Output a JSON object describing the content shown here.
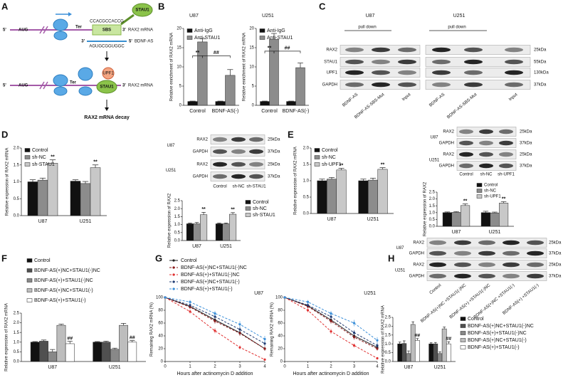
{
  "panel_a": {
    "letter": "A",
    "row1": {
      "five": "5'",
      "start": "AUG",
      "stop": "Ter",
      "sequence": "CCACGCCACCG",
      "three": "3'",
      "mrna": "RAX2 mRNA",
      "site": "SBS",
      "protein": "STAU1"
    },
    "antisense": {
      "three": "3'",
      "sequence": "AGUGCGGUGGC",
      "five": "5'",
      "name": "BDNF-AS"
    },
    "row2": {
      "five": "5'",
      "start": "AUG",
      "stop": "Ter",
      "upf": "UPF1",
      "protein": "STAU1",
      "three": "3'",
      "mrna": "RAX2 mRNA"
    },
    "result": "RAX2 mRNA decay"
  },
  "panel_b": {
    "letter": "B",
    "charts": [
      {
        "type": "bar",
        "title": "U87",
        "ylabel": "Relative enrichment of RAX2 mRNA",
        "categories": [
          "Control",
          "BDNF-AS(-)"
        ],
        "ylim": [
          0,
          20
        ],
        "yticks": [
          0,
          5,
          10,
          15,
          20
        ],
        "legend": "upper left",
        "annotations": [
          "**",
          "##"
        ],
        "series": [
          {
            "name": "Anti-IgG",
            "color": "#111111",
            "values": [
              1,
              1
            ],
            "errors": [
              0.1,
              0.1
            ]
          },
          {
            "name": "Anti-STAU1",
            "color": "#8c8c8c",
            "values": [
              16.5,
              7.8
            ],
            "errors": [
              0.8,
              1.5
            ]
          }
        ]
      },
      {
        "type": "bar",
        "title": "U251",
        "ylabel": "Relative enrichment of RAX2 mRNA",
        "categories": [
          "Control",
          "BDNF-AS(-)"
        ],
        "ylim": [
          0,
          20
        ],
        "yticks": [
          0,
          5,
          10,
          15,
          20
        ],
        "legend": "upper left",
        "annotations": [
          "**",
          "##"
        ],
        "series": [
          {
            "name": "Anti-IgG",
            "color": "#111111",
            "values": [
              1,
              1
            ],
            "errors": [
              0.1,
              0.1
            ]
          },
          {
            "name": "Anti-STAU1",
            "color": "#8c8c8c",
            "values": [
              17.2,
              9.8
            ],
            "errors": [
              1.5,
              1.2
            ]
          }
        ]
      }
    ]
  },
  "panel_c": {
    "letter": "C",
    "cell_lines": [
      "U87",
      "U251"
    ],
    "pull_down": [
      "pull down",
      "pull down"
    ],
    "blot": {
      "rows": [
        {
          "protein": "RAX2",
          "size": "25kDa"
        },
        {
          "protein": "STAU1",
          "size": "55kDa"
        },
        {
          "protein": "UPF1",
          "size": "130kDa"
        },
        {
          "protein": "GAPDH",
          "size": "37kDa"
        }
      ],
      "lanes": [
        "BDNF-AS",
        "BDNF-AS-SBS-Mut",
        "Input",
        "BDNF-AS",
        "BDNF-AS-SBS-Mut",
        "Input"
      ]
    }
  },
  "panel_d": {
    "letter": "D",
    "chart": {
      "type": "bar",
      "ylabel": "Relative expression of RAX2 mRNA",
      "categories": [
        "U87",
        "U251"
      ],
      "ylim": [
        0,
        2
      ],
      "yticks": [
        {
          "value": 0,
          "label": "0.0"
        },
        {
          "value": 0.5,
          "label": "0.5"
        },
        {
          "value": 1,
          "label": "1.0"
        },
        {
          "value": 1.5,
          "label": "1.5"
        },
        {
          "value": 2,
          "label": "2.0"
        }
      ],
      "legend": "upper left",
      "series": [
        {
          "name": "Control",
          "color": "#111111",
          "values": [
            1.0,
            1.02
          ],
          "errors": [
            0.06,
            0.04
          ]
        },
        {
          "name": "sh-NC",
          "color": "#8c8c8c",
          "values": [
            1.05,
            0.95
          ],
          "errors": [
            0.06,
            0.06
          ]
        },
        {
          "name": "sh-STAU1",
          "color": "#c8c8c8",
          "values": [
            1.55,
            1.42
          ],
          "errors": [
            0.1,
            0.08
          ],
          "significance": [
            "**",
            "**"
          ]
        }
      ]
    },
    "blot": {
      "rows": [
        {
          "cell": "U87",
          "protein": "RAX2",
          "size": "25kDa"
        },
        {
          "protein": "GAPDH",
          "size": "37kDa"
        },
        {
          "cell": "U251",
          "protein": "RAX2",
          "size": "25kDa"
        },
        {
          "protein": "GAPDH",
          "size": "37kDa"
        }
      ],
      "lanes": [
        "Control",
        "sh-NC",
        "sh-STAU1"
      ]
    },
    "quant": {
      "type": "bar",
      "ylabel": "Relative expression of RAX2",
      "categories": [
        "U87",
        "U251"
      ],
      "ylim": [
        0,
        2.5
      ],
      "yticks": [
        {
          "value": 0,
          "label": "0.0"
        },
        {
          "value": 0.5,
          "label": "0.5"
        },
        {
          "value": 1,
          "label": "1.0"
        },
        {
          "value": 1.5,
          "label": "1.5"
        },
        {
          "value": 2,
          "label": "2.0"
        },
        {
          "value": 2.5,
          "label": "2.5"
        }
      ],
      "legend": "right",
      "series": [
        {
          "name": "Control",
          "color": "#111111",
          "values": [
            1.05,
            1.05
          ],
          "errors": [
            0.05,
            0.05
          ]
        },
        {
          "name": "sh-NC",
          "color": "#8c8c8c",
          "values": [
            1.05,
            1.05
          ],
          "errors": [
            0.08,
            0.05
          ]
        },
        {
          "name": "sh-STAU1",
          "color": "#c8c8c8",
          "values": [
            1.62,
            1.65
          ],
          "errors": [
            0.15,
            0.1
          ],
          "significance": [
            "**",
            "**"
          ]
        }
      ]
    }
  },
  "panel_e": {
    "letter": "E",
    "chart": {
      "type": "bar",
      "ylabel": "Relative expression of RAX2 mRNA",
      "categories": [
        "U87",
        "U251"
      ],
      "ylim": [
        0,
        2
      ],
      "yticks": [
        {
          "value": 0,
          "label": "0.0"
        },
        {
          "value": 0.5,
          "label": "0.5"
        },
        {
          "value": 1,
          "label": "1.0"
        },
        {
          "value": 1.5,
          "label": "1.5"
        },
        {
          "value": 2,
          "label": "2.0"
        }
      ],
      "legend": "upper left",
      "series": [
        {
          "name": "Control",
          "color": "#111111",
          "values": [
            1.0,
            1.0
          ],
          "errors": [
            0.05,
            0.05
          ]
        },
        {
          "name": "sh-NC",
          "color": "#8c8c8c",
          "values": [
            1.05,
            1.02
          ],
          "errors": [
            0.05,
            0.06
          ]
        },
        {
          "name": "sh-UPF1",
          "color": "#c8c8c8",
          "values": [
            1.33,
            1.35
          ],
          "errors": [
            0.05,
            0.05
          ],
          "significance": [
            "**",
            "**"
          ]
        }
      ]
    },
    "blot": {
      "rows": [
        {
          "cell": "U87",
          "protein": "RAX2",
          "size": "25kDa"
        },
        {
          "protein": "GAPDH",
          "size": "37kDa"
        },
        {
          "cell": "U251",
          "protein": "RAX2",
          "size": "25kDa"
        },
        {
          "protein": "GAPDH",
          "size": "37kDa"
        }
      ],
      "lanes": [
        "Control",
        "sh-NC",
        "sh-UPF1"
      ]
    },
    "quant": {
      "type": "bar",
      "ylabel": "Relative expression of RAX2",
      "categories": [
        "U87",
        "U251"
      ],
      "ylim": [
        0,
        2.5
      ],
      "yticks": [
        {
          "value": 0,
          "label": "0.0"
        },
        {
          "value": 0.5,
          "label": "0.5"
        },
        {
          "value": 1,
          "label": "1.0"
        },
        {
          "value": 1.5,
          "label": "1.5"
        },
        {
          "value": 2,
          "label": "2.0"
        },
        {
          "value": 2.5,
          "label": "2.5"
        }
      ],
      "legend": "upper right",
      "series": [
        {
          "name": "Control",
          "color": "#111111",
          "values": [
            1.0,
            1.0
          ],
          "errors": [
            0.05,
            0.1
          ]
        },
        {
          "name": "sh-NC",
          "color": "#8c8c8c",
          "values": [
            1.02,
            0.98
          ],
          "errors": [
            0.06,
            0.06
          ]
        },
        {
          "name": "sh-UPF1",
          "color": "#c8c8c8",
          "values": [
            1.52,
            1.7
          ],
          "errors": [
            0.12,
            0.1
          ],
          "significance": [
            "**",
            "**"
          ]
        }
      ]
    }
  },
  "panel_f": {
    "letter": "F",
    "chart": {
      "type": "bar",
      "ylabel": "Relative expression of RAX2 mRNA",
      "categories": [
        "U87",
        "U251"
      ],
      "ylim": [
        0,
        2.5
      ],
      "yticks": [
        {
          "value": 0,
          "label": "0.0"
        },
        {
          "value": 0.5,
          "label": "0.5"
        },
        {
          "value": 1,
          "label": "1.0"
        },
        {
          "value": 1.5,
          "label": "1.5"
        },
        {
          "value": 2,
          "label": "2.0"
        },
        {
          "value": 2.5,
          "label": "2.5"
        }
      ],
      "legend": "top",
      "series": [
        {
          "name": "Control",
          "color": "#111111",
          "values": [
            1.0,
            1.0
          ],
          "errors": [
            0.03,
            0.03
          ]
        },
        {
          "name": "BDNF-AS(+)NC+STAU1(-)NC",
          "color": "#505050",
          "values": [
            1.05,
            1.0
          ],
          "errors": [
            0.06,
            0.05
          ]
        },
        {
          "name": "BDNF-AS(+)+STAU1(-)NC",
          "color": "#888888",
          "values": [
            0.5,
            0.63
          ],
          "errors": [
            0.12,
            0.06
          ]
        },
        {
          "name": "BDNF-AS(+)NC+STAU1(-)",
          "color": "#bdbdbd",
          "values": [
            1.87,
            1.87
          ],
          "errors": [
            0.06,
            0.1
          ]
        },
        {
          "name": "BDNF-AS(+)+STAU1(-)",
          "color": "#ffffff",
          "values": [
            0.92,
            1.0
          ],
          "errors": [
            0.12,
            0.08
          ],
          "significance": [
            "##",
            "##"
          ]
        }
      ]
    }
  },
  "panel_g": {
    "letter": "G",
    "charts": [
      {
        "type": "line",
        "title": "U87",
        "ylabel": "Remaining RAX2 mRNA (%)",
        "xlabel": "Hours after actinomycin D addition",
        "x": [
          0,
          1,
          2,
          3,
          4
        ],
        "xlim": [
          0,
          4
        ],
        "xticks": [
          0,
          1,
          2,
          3,
          4
        ],
        "ylim": [
          0,
          100
        ],
        "yticks": [
          0,
          20,
          40,
          60,
          80,
          100
        ],
        "legend": "top",
        "series": [
          {
            "name": "Control",
            "color": "#222222",
            "style": "solid",
            "values": [
              100,
              86,
              65,
              45,
              20
            ],
            "errors": [
              0,
              3,
              4,
              4,
              3
            ]
          },
          {
            "name": "BDNF-AS(+)NC+STAU1(-)NC",
            "color": "#8b1a1a",
            "style": "dashed",
            "values": [
              100,
              85,
              63,
              44,
              20
            ],
            "errors": [
              0,
              3,
              4,
              4,
              3
            ]
          },
          {
            "name": "BDNF-AS(+)+STAU1(-)NC",
            "color": "#e03030",
            "style": "dashed",
            "values": [
              100,
              78,
              48,
              22,
              3
            ],
            "errors": [
              0,
              3,
              4,
              3,
              2
            ]
          },
          {
            "name": "BDNF-AS(+)NC+STAU1(-)",
            "color": "#1f3b73",
            "style": "dashed",
            "values": [
              100,
              88,
              70,
              50,
              28
            ],
            "errors": [
              0,
              3,
              4,
              4,
              4
            ]
          },
          {
            "name": "BDNF-AS(+)+STAU1(-)",
            "color": "#3b8fd9",
            "style": "dashed",
            "values": [
              100,
              93,
              75,
              58,
              35
            ],
            "errors": [
              0,
              3,
              4,
              5,
              5
            ]
          }
        ]
      },
      {
        "type": "line",
        "title": "U251",
        "ylabel": "Remaining RAX2 mRNA (%)",
        "xlabel": "Hours after actinomycin D addition",
        "x": [
          0,
          1,
          2,
          3,
          4
        ],
        "xlim": [
          0,
          4
        ],
        "xticks": [
          0,
          1,
          2,
          3,
          4
        ],
        "ylim": [
          0,
          100
        ],
        "yticks": [
          0,
          20,
          40,
          60,
          80,
          100
        ],
        "series": [
          {
            "name": "Control",
            "color": "#222222",
            "style": "solid",
            "values": [
              100,
              87,
              65,
              40,
              22
            ],
            "errors": [
              0,
              3,
              4,
              4,
              3
            ]
          },
          {
            "name": "BDNF-AS(+)NC+STAU1(-)NC",
            "color": "#8b1a1a",
            "style": "dashed",
            "values": [
              100,
              86,
              63,
              38,
              20
            ],
            "errors": [
              0,
              3,
              4,
              4,
              3
            ]
          },
          {
            "name": "BDNF-AS(+)+STAU1(-)NC",
            "color": "#e03030",
            "style": "dashed",
            "values": [
              100,
              80,
              47,
              25,
              5
            ],
            "errors": [
              0,
              3,
              4,
              3,
              2
            ]
          },
          {
            "name": "BDNF-AS(+)NC+STAU1(-)",
            "color": "#1f3b73",
            "style": "dashed",
            "values": [
              100,
              88,
              70,
              45,
              25
            ],
            "errors": [
              0,
              3,
              4,
              4,
              4
            ]
          },
          {
            "name": "BDNF-AS(+)+STAU1(-)",
            "color": "#3b8fd9",
            "style": "dashed",
            "values": [
              100,
              93,
              75,
              60,
              33
            ],
            "errors": [
              0,
              3,
              4,
              5,
              5
            ]
          }
        ]
      }
    ]
  },
  "panel_h": {
    "letter": "H",
    "blot": {
      "rows": [
        {
          "cell": "U87",
          "protein": "RAX2",
          "size": "25kDa"
        },
        {
          "protein": "GAPDH",
          "size": "37kDa"
        },
        {
          "cell": "U251",
          "protein": "RAX2",
          "size": "25kDa"
        },
        {
          "protein": "GAPDH",
          "size": "37kDa"
        }
      ],
      "lanes": [
        "Control",
        "BDNF-AS(+)NC +STAU1(-)NC",
        "BDNF-AS(+) +STAU1(-)NC",
        "BDNF-AS(+)NC +STAU1(-)",
        "BDNF-AS(+) +STAU1(-)"
      ]
    },
    "chart": {
      "type": "bar",
      "ylabel": "Relative expression of RAX2 mRNA",
      "categories": [
        "U87",
        "U251"
      ],
      "ylim": [
        0,
        2.5
      ],
      "yticks": [
        {
          "value": 0,
          "label": "0.0"
        },
        {
          "value": 0.5,
          "label": "0.5"
        },
        {
          "value": 1,
          "label": "1.0"
        },
        {
          "value": 1.5,
          "label": "1.5"
        },
        {
          "value": 2,
          "label": "2.0"
        },
        {
          "value": 2.5,
          "label": "2.5"
        }
      ],
      "legend": "right",
      "series": [
        {
          "name": "Control",
          "color": "#111111",
          "values": [
            1.0,
            1.0
          ],
          "errors": [
            0.1,
            0.06
          ]
        },
        {
          "name": "BDNF-AS(+)NC+STAU1(-)NC",
          "color": "#505050",
          "values": [
            1.02,
            1.0
          ],
          "errors": [
            0.15,
            0.08
          ]
        },
        {
          "name": "BDNF-AS(+)+STAU1(-)NC",
          "color": "#888888",
          "values": [
            0.45,
            0.45
          ],
          "errors": [
            0.15,
            0.1
          ]
        },
        {
          "name": "BDNF-AS(+)NC+STAU1(-)",
          "color": "#bdbdbd",
          "values": [
            2.1,
            1.85
          ],
          "errors": [
            0.15,
            0.1
          ]
        },
        {
          "name": "BDNF-AS(+)+STAU1(-)",
          "color": "#ffffff",
          "values": [
            1.2,
            1.0
          ],
          "errors": [
            0.1,
            0.12
          ],
          "significance": [
            "##",
            "##"
          ]
        }
      ]
    }
  }
}
